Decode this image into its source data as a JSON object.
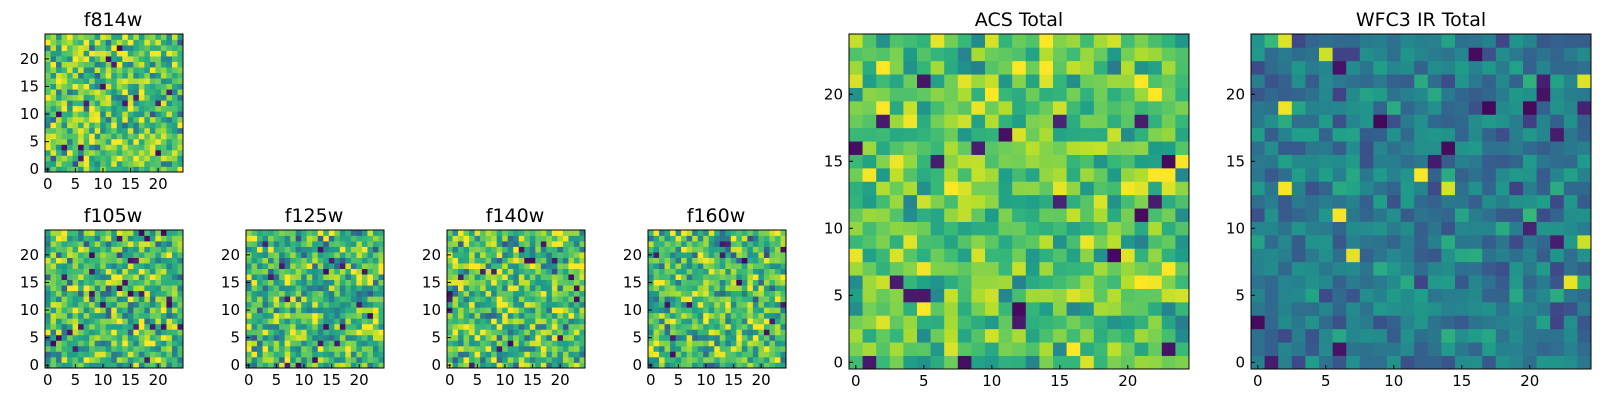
{
  "chart_data": [
    {
      "type": "heatmap",
      "title": "f814w",
      "grid_size": 25,
      "xticks": [
        "0",
        "5",
        "10",
        "15",
        "20"
      ],
      "yticks": [
        "0",
        "5",
        "10",
        "15",
        "20"
      ],
      "colormap": "viridis",
      "values_note": "pixel noise image; cell values are pseudo-random in [0,1] approximating texture",
      "seed": 11,
      "bias": 0.72,
      "spread": 0.22
    },
    {
      "type": "heatmap",
      "title": "f105w",
      "grid_size": 25,
      "xticks": [
        "0",
        "5",
        "10",
        "15",
        "20"
      ],
      "yticks": [
        "0",
        "5",
        "10",
        "15",
        "20"
      ],
      "colormap": "viridis",
      "seed": 23,
      "bias": 0.68,
      "spread": 0.22
    },
    {
      "type": "heatmap",
      "title": "f125w",
      "grid_size": 25,
      "xticks": [
        "0",
        "5",
        "10",
        "15",
        "20"
      ],
      "yticks": [
        "0",
        "5",
        "10",
        "15",
        "20"
      ],
      "colormap": "viridis",
      "seed": 37,
      "bias": 0.68,
      "spread": 0.22
    },
    {
      "type": "heatmap",
      "title": "f140w",
      "grid_size": 25,
      "xticks": [
        "0",
        "5",
        "10",
        "15",
        "20"
      ],
      "yticks": [
        "0",
        "5",
        "10",
        "15",
        "20"
      ],
      "colormap": "viridis",
      "seed": 41,
      "bias": 0.7,
      "spread": 0.22
    },
    {
      "type": "heatmap",
      "title": "f160w",
      "grid_size": 25,
      "xticks": [
        "0",
        "5",
        "10",
        "15",
        "20"
      ],
      "yticks": [
        "0",
        "5",
        "10",
        "15",
        "20"
      ],
      "colormap": "viridis",
      "seed": 53,
      "bias": 0.7,
      "spread": 0.22
    },
    {
      "type": "heatmap",
      "title": "ACS Total",
      "grid_size": 25,
      "xticks": [
        "0",
        "5",
        "10",
        "15",
        "20"
      ],
      "yticks": [
        "0",
        "5",
        "10",
        "15",
        "20"
      ],
      "colormap": "viridis",
      "seed": 67,
      "bias": 0.74,
      "spread": 0.16
    },
    {
      "type": "heatmap",
      "title": "WFC3 IR Total",
      "grid_size": 25,
      "xticks": [
        "0",
        "5",
        "10",
        "15",
        "20"
      ],
      "yticks": [
        "0",
        "5",
        "10",
        "15",
        "20"
      ],
      "colormap": "viridis",
      "seed": 79,
      "bias": 0.42,
      "spread": 0.12
    }
  ]
}
